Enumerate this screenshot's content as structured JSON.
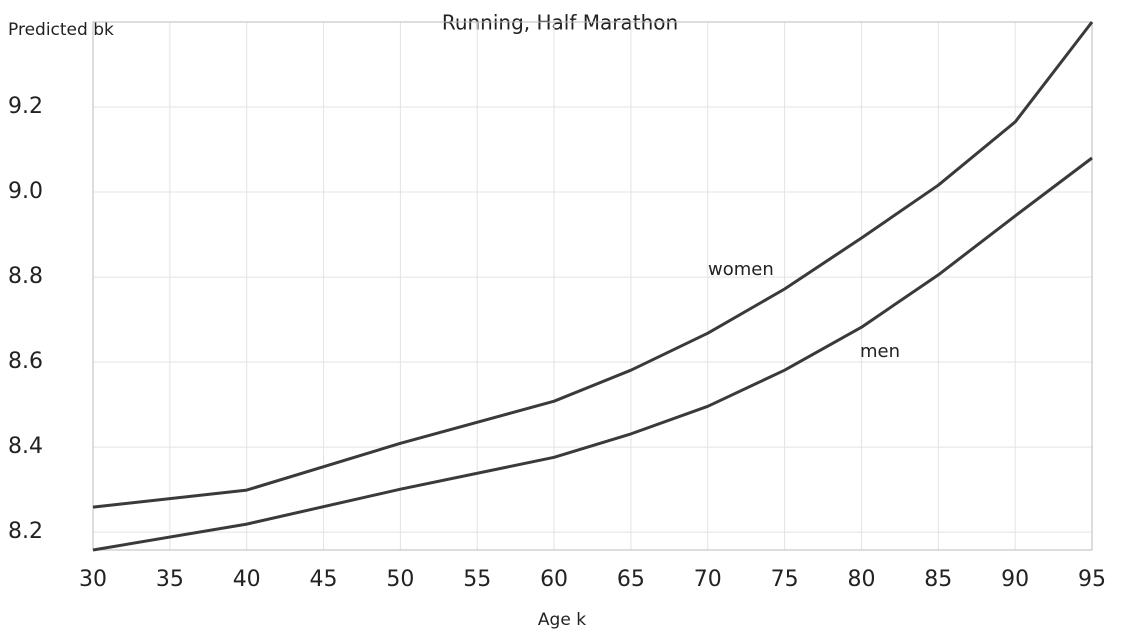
{
  "chart_data": {
    "type": "line",
    "title": "Running, Half Marathon",
    "y_label": "Predicted bk",
    "x_label": "Age k",
    "x": [
      30,
      40,
      50,
      60,
      65,
      70,
      75,
      80,
      85,
      90,
      95
    ],
    "series": [
      {
        "name": "women",
        "color": "#3a3a3a",
        "values": [
          8.259,
          8.299,
          8.409,
          8.508,
          8.581,
          8.668,
          8.772,
          8.892,
          9.016,
          9.165,
          9.4
        ]
      },
      {
        "name": "men",
        "color": "#3a3a3a",
        "values": [
          8.158,
          8.219,
          8.301,
          8.376,
          8.431,
          8.496,
          8.581,
          8.682,
          8.805,
          8.944,
          9.08
        ]
      }
    ],
    "xlim": [
      30,
      95
    ],
    "xticks": [
      30,
      35,
      40,
      45,
      50,
      55,
      60,
      65,
      70,
      75,
      80,
      85,
      90,
      95
    ],
    "ylim": [
      8.158,
      9.4
    ],
    "yticks": [
      8.2,
      8.4,
      8.6,
      8.8,
      {
        "value": 9,
        "label": "9.0"
      },
      9.2
    ],
    "grid": true
  }
}
